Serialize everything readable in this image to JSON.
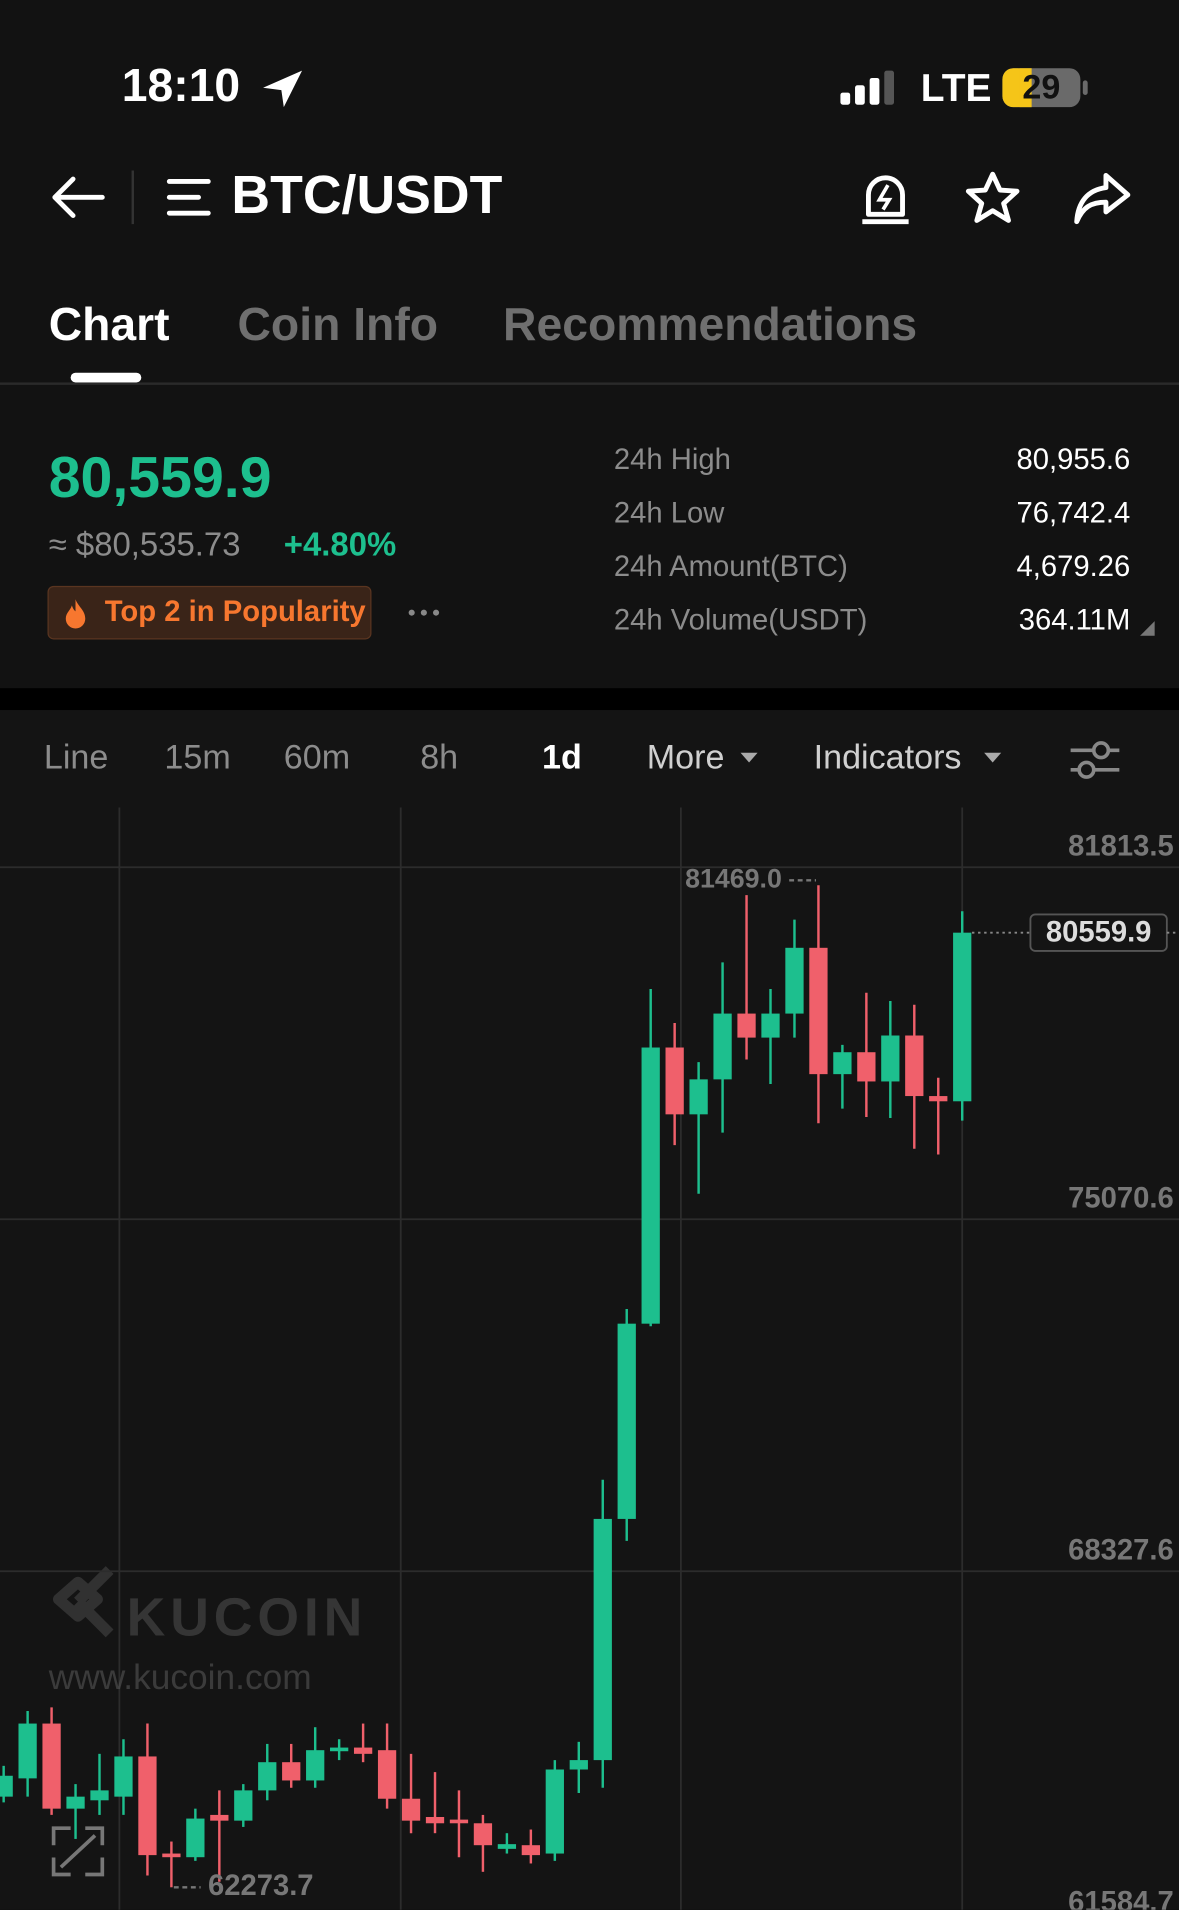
{
  "status_bar": {
    "time": "18:10",
    "network": "LTE",
    "battery": "29"
  },
  "header": {
    "pair": "BTC/USDT"
  },
  "tabs": [
    "Chart",
    "Coin Info",
    "Recommendations"
  ],
  "ticker": {
    "price": "80,559.9",
    "fiat_price": "≈ $80,535.73",
    "change": "+4.80%",
    "badge": "Top 2 in Popularity"
  },
  "stats": [
    {
      "label": "24h High",
      "value": "80,955.6"
    },
    {
      "label": "24h Low",
      "value": "76,742.4"
    },
    {
      "label": "24h Amount(BTC)",
      "value": "4,679.26"
    },
    {
      "label": "24h Volume(USDT)",
      "value": "364.11M"
    }
  ],
  "timeframes": [
    "Line",
    "15m",
    "60m",
    "8h",
    "1d",
    "More",
    "Indicators"
  ],
  "watermark": {
    "brand": "KUCOIN",
    "url": "www.kucoin.com"
  },
  "chart_data": {
    "type": "candlestick",
    "open": [
      64010,
      64360,
      65410,
      63780,
      63940,
      64010,
      64780,
      62920,
      62850,
      63660,
      63550,
      64130,
      64670,
      64320,
      64880,
      64950,
      64900,
      63970,
      63620,
      63570,
      63500,
      63010,
      63080,
      62920,
      64530,
      64710,
      69330,
      73070,
      78360,
      77080,
      77750,
      79010,
      78550,
      79010,
      80270,
      77850,
      78270,
      77710,
      78590,
      77430,
      77330
    ],
    "high": [
      64600,
      65650,
      65720,
      64250,
      64830,
      65110,
      65410,
      63150,
      63780,
      64130,
      64250,
      65020,
      65020,
      65340,
      65110,
      65410,
      65410,
      64830,
      64480,
      64130,
      63660,
      63310,
      63380,
      64710,
      65060,
      70080,
      73350,
      79480,
      78830,
      78080,
      79990,
      81280,
      79480,
      80810,
      81469.0,
      78410,
      79410,
      79250,
      79180,
      77780,
      80970
    ],
    "low": [
      63900,
      64010,
      63660,
      63200,
      63660,
      63660,
      62500,
      62273.7,
      62780,
      62380,
      63430,
      63940,
      64180,
      64180,
      64710,
      64670,
      63780,
      63310,
      63310,
      62850,
      62570,
      62920,
      62730,
      62780,
      64080,
      64180,
      68910,
      73020,
      76490,
      75560,
      76730,
      78130,
      77660,
      78550,
      76910,
      77190,
      77030,
      77010,
      76420,
      76310,
      76960
    ],
    "close": [
      64410,
      65410,
      63780,
      64010,
      64130,
      64780,
      62890,
      62850,
      63590,
      63550,
      64130,
      64670,
      64320,
      64900,
      64950,
      64830,
      63970,
      63550,
      63500,
      63500,
      63080,
      63100,
      62890,
      64530,
      64710,
      69330,
      73070,
      78360,
      77080,
      77750,
      79010,
      78550,
      79010,
      80270,
      77850,
      78270,
      77710,
      78590,
      77430,
      77330,
      80559.9
    ],
    "up_color": "#1dbf8e",
    "down_color": "#f0606b",
    "ylim": [
      61842,
      82957
    ],
    "yticks": [
      61584.7,
      68327.6,
      75070.6,
      81813.5
    ],
    "grid": true,
    "high_label": "81469.0",
    "low_label": "62273.7",
    "last_label": "80559.9"
  }
}
